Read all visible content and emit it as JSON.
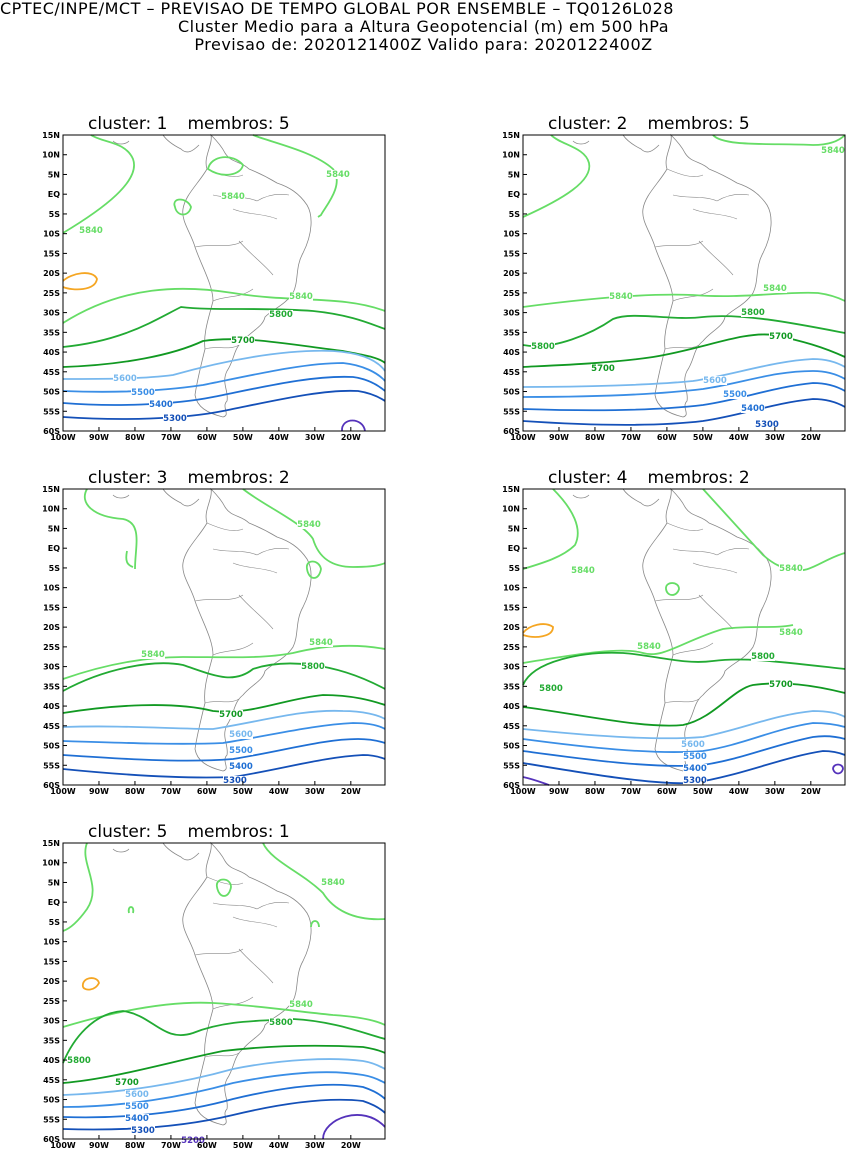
{
  "header": {
    "line1": "CPTEC/INPE/MCT – PREVISAO DE TEMPO GLOBAL POR ENSEMBLE – TQ0126L028",
    "line2": "Cluster Medio para a Altura Geopotencial (m) em 500 hPa",
    "line3": "Previsao de: 2020121400Z    Valido para: 2020122400Z"
  },
  "axes": {
    "lat_labels": [
      "15N",
      "10N",
      "5N",
      "EQ",
      "5S",
      "10S",
      "15S",
      "20S",
      "25S",
      "30S",
      "35S",
      "40S",
      "45S",
      "50S",
      "55S",
      "60S"
    ],
    "lon_labels": [
      "100W",
      "90W",
      "80W",
      "70W",
      "60W",
      "50W",
      "40W",
      "30W",
      "20W"
    ]
  },
  "colors": {
    "c5840": "#66dd66",
    "c5800": "#22aa33",
    "c5700": "#119922",
    "c5600": "#77b8ee",
    "c5500": "#3a8ee6",
    "c5400": "#1f6fd4",
    "c5300": "#1450b8",
    "c5200": "#5533bb",
    "orange": "#f5a623",
    "coast": "#888888"
  },
  "panels": [
    {
      "title": "cluster: 1",
      "members": "membros: 5",
      "labels": [
        {
          "text": "5840"
        },
        {
          "text": "5840"
        },
        {
          "text": "5840"
        },
        {
          "text": "5840"
        },
        {
          "text": "5800"
        },
        {
          "text": "5700"
        },
        {
          "text": "5600"
        },
        {
          "text": "5500"
        },
        {
          "text": "5400"
        },
        {
          "text": "5300"
        }
      ]
    },
    {
      "title": "cluster: 2",
      "members": "membros: 5",
      "labels": [
        {
          "text": "5840"
        },
        {
          "text": "5840"
        },
        {
          "text": "5840"
        },
        {
          "text": "5800"
        },
        {
          "text": "5800"
        },
        {
          "text": "5700"
        },
        {
          "text": "5700"
        },
        {
          "text": "5600"
        },
        {
          "text": "5500"
        },
        {
          "text": "5400"
        },
        {
          "text": "5300"
        }
      ]
    },
    {
      "title": "cluster: 3",
      "members": "membros: 2",
      "labels": [
        {
          "text": "5840"
        },
        {
          "text": "5840"
        },
        {
          "text": "5840"
        },
        {
          "text": "5800"
        },
        {
          "text": "5700"
        },
        {
          "text": "5600"
        },
        {
          "text": "5500"
        },
        {
          "text": "5400"
        },
        {
          "text": "5300"
        }
      ]
    },
    {
      "title": "cluster: 4",
      "members": "membros: 2",
      "labels": [
        {
          "text": "5840"
        },
        {
          "text": "5840"
        },
        {
          "text": "5840"
        },
        {
          "text": "5840"
        },
        {
          "text": "5800"
        },
        {
          "text": "5800"
        },
        {
          "text": "5700"
        },
        {
          "text": "5600"
        },
        {
          "text": "5500"
        },
        {
          "text": "5400"
        },
        {
          "text": "5300"
        }
      ]
    },
    {
      "title": "cluster: 5",
      "members": "membros: 1",
      "labels": [
        {
          "text": "5840"
        },
        {
          "text": "5840"
        },
        {
          "text": "5800"
        },
        {
          "text": "5800"
        },
        {
          "text": "5700"
        },
        {
          "text": "5600"
        },
        {
          "text": "5500"
        },
        {
          "text": "5400"
        },
        {
          "text": "5300"
        },
        {
          "text": "5200"
        }
      ]
    }
  ]
}
